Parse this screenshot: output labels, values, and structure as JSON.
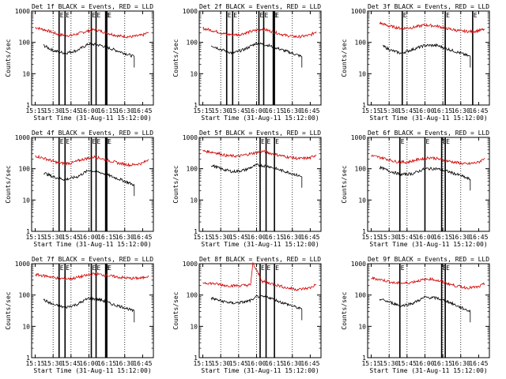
{
  "page": {
    "background": "#ffffff",
    "event_color": "#000000",
    "lld_color": "#d10000"
  },
  "chart_data": [
    {
      "type": "line",
      "title": "Det 1f BLACK = Events, RED = LLD",
      "xlabel": "Start Time (31-Aug-11 15:12:00)",
      "ylabel": "Counts/sec",
      "y_scale": "log",
      "ylim": [
        1,
        1000
      ],
      "y_ticks": [
        1,
        10,
        100,
        1000
      ],
      "y_tick_labels": [
        "1",
        "10",
        "100",
        "1000"
      ],
      "x_ticks": [
        "15:15",
        "15:30",
        "15:45",
        "16:00",
        "16:15",
        "16:30",
        "16:45"
      ],
      "dotted_gridlines": [
        "15:30",
        "15:45",
        "16:00",
        "16:15",
        "16:30"
      ],
      "attenuator_markers": [
        "15:35",
        "15:40",
        "16:02",
        "16:06",
        "16:14",
        "16:15"
      ],
      "marker_label": "E",
      "series": [
        {
          "color": "#d10000",
          "x": [
            "15:15",
            "15:25",
            "15:35",
            "15:45",
            "15:55",
            "16:05",
            "16:15",
            "16:25",
            "16:35",
            "16:45",
            "16:50"
          ],
          "values": [
            300,
            240,
            175,
            165,
            210,
            260,
            200,
            160,
            150,
            170,
            210
          ]
        },
        {
          "color": "#000000",
          "x": [
            "15:22",
            "15:30",
            "15:40",
            "15:50",
            "16:00",
            "16:10",
            "16:20",
            "16:30",
            "16:38"
          ],
          "values": [
            80,
            55,
            45,
            55,
            90,
            80,
            60,
            45,
            35
          ]
        }
      ]
    },
    {
      "type": "line",
      "title": "Det 2f BLACK = Events, RED = LLD",
      "xlabel": "Start Time (31-Aug-11 15:12:00)",
      "ylabel": "Counts/sec",
      "y_scale": "log",
      "ylim": [
        1,
        1000
      ],
      "y_ticks": [
        1,
        10,
        100,
        1000
      ],
      "y_tick_labels": [
        "1",
        "10",
        "100",
        "1000"
      ],
      "x_ticks": [
        "15:15",
        "15:30",
        "15:45",
        "16:00",
        "16:15",
        "16:30",
        "16:45"
      ],
      "dotted_gridlines": [
        "15:30",
        "15:45",
        "16:00",
        "16:15",
        "16:30"
      ],
      "attenuator_markers": [
        "15:35",
        "15:40",
        "16:02",
        "16:06",
        "16:14",
        "16:15"
      ],
      "marker_label": "E",
      "series": [
        {
          "color": "#d10000",
          "x": [
            "15:15",
            "15:25",
            "15:35",
            "15:45",
            "15:55",
            "16:05",
            "16:15",
            "16:25",
            "16:35",
            "16:45",
            "16:50"
          ],
          "values": [
            280,
            230,
            180,
            175,
            220,
            270,
            210,
            165,
            150,
            170,
            220
          ]
        },
        {
          "color": "#000000",
          "x": [
            "15:22",
            "15:30",
            "15:40",
            "15:50",
            "16:00",
            "16:10",
            "16:20",
            "16:30",
            "16:38"
          ],
          "values": [
            80,
            60,
            45,
            60,
            95,
            80,
            60,
            45,
            35
          ]
        }
      ]
    },
    {
      "type": "line",
      "title": "Det 3f BLACK = Events, RED = LLD",
      "xlabel": "Start Time (31-Aug-11 15:12:00)",
      "ylabel": "Counts/sec",
      "y_scale": "log",
      "ylim": [
        1,
        1000
      ],
      "y_ticks": [
        1,
        10,
        100,
        1000
      ],
      "y_tick_labels": [
        "1",
        "10",
        "100",
        "1000"
      ],
      "x_ticks": [
        "15:15",
        "15:30",
        "15:45",
        "16:00",
        "16:15",
        "16:30",
        "16:45"
      ],
      "dotted_gridlines": [
        "15:30",
        "15:45",
        "16:00",
        "16:15",
        "16:30"
      ],
      "attenuator_markers": [
        "15:41",
        "16:17",
        "16:40"
      ],
      "marker_label": "E",
      "series": [
        {
          "color": "#d10000",
          "x": [
            "15:22",
            "15:30",
            "15:40",
            "15:50",
            "16:00",
            "16:10",
            "16:20",
            "16:30",
            "16:40",
            "16:50"
          ],
          "values": [
            420,
            330,
            280,
            300,
            360,
            330,
            270,
            230,
            220,
            260
          ]
        },
        {
          "color": "#000000",
          "x": [
            "15:25",
            "15:32",
            "15:40",
            "15:50",
            "16:00",
            "16:10",
            "16:20",
            "16:30",
            "16:38"
          ],
          "values": [
            75,
            55,
            45,
            60,
            80,
            80,
            60,
            45,
            35
          ]
        }
      ]
    },
    {
      "type": "line",
      "title": "Det 4f BLACK = Events, RED = LLD",
      "xlabel": "Start Time (31-Aug-11 15:12:00)",
      "ylabel": "Counts/sec",
      "y_scale": "log",
      "ylim": [
        1,
        1000
      ],
      "y_ticks": [
        1,
        10,
        100,
        1000
      ],
      "y_tick_labels": [
        "1",
        "10",
        "100",
        "1000"
      ],
      "x_ticks": [
        "15:15",
        "15:30",
        "15:45",
        "16:00",
        "16:15",
        "16:30",
        "16:45"
      ],
      "dotted_gridlines": [
        "15:30",
        "15:45",
        "16:00",
        "16:15",
        "16:30"
      ],
      "attenuator_markers": [
        "15:35",
        "15:40",
        "16:02",
        "16:06",
        "16:14",
        "16:15"
      ],
      "marker_label": "E",
      "series": [
        {
          "color": "#d10000",
          "x": [
            "15:15",
            "15:25",
            "15:35",
            "15:45",
            "15:55",
            "16:05",
            "16:15",
            "16:25",
            "16:35",
            "16:45",
            "16:50"
          ],
          "values": [
            260,
            200,
            150,
            150,
            200,
            240,
            190,
            150,
            130,
            150,
            200
          ]
        },
        {
          "color": "#000000",
          "x": [
            "15:22",
            "15:30",
            "15:40",
            "15:50",
            "16:00",
            "16:10",
            "16:20",
            "16:30",
            "16:38"
          ],
          "values": [
            75,
            55,
            45,
            55,
            90,
            75,
            55,
            40,
            30
          ]
        }
      ]
    },
    {
      "type": "line",
      "title": "Det 5f BLACK = Events, RED = LLD",
      "xlabel": "Start Time (31-Aug-11 15:12:00)",
      "ylabel": "Counts/sec",
      "y_scale": "log",
      "ylim": [
        1,
        1000
      ],
      "y_ticks": [
        1,
        10,
        100,
        1000
      ],
      "y_tick_labels": [
        "1",
        "10",
        "100",
        "1000"
      ],
      "x_ticks": [
        "15:15",
        "15:30",
        "15:45",
        "16:00",
        "16:15",
        "16:30",
        "16:45"
      ],
      "dotted_gridlines": [
        "15:30",
        "15:45",
        "16:00",
        "16:15",
        "16:30"
      ],
      "attenuator_markers": [
        "16:03",
        "16:08",
        "16:15"
      ],
      "marker_label": "E",
      "series": [
        {
          "color": "#d10000",
          "x": [
            "15:15",
            "15:25",
            "15:35",
            "15:45",
            "15:55",
            "16:05",
            "16:15",
            "16:25",
            "16:35",
            "16:45",
            "16:50"
          ],
          "values": [
            370,
            330,
            260,
            250,
            300,
            360,
            290,
            240,
            210,
            220,
            280
          ]
        },
        {
          "color": "#000000",
          "x": [
            "15:22",
            "15:30",
            "15:40",
            "15:50",
            "16:00",
            "16:10",
            "16:20",
            "16:30",
            "16:38"
          ],
          "values": [
            130,
            100,
            80,
            90,
            130,
            120,
            90,
            70,
            55
          ]
        }
      ]
    },
    {
      "type": "line",
      "title": "Det 6f BLACK = Events, RED = LLD",
      "xlabel": "Start Time (31-Aug-11 15:12:00)",
      "ylabel": "Counts/sec",
      "y_scale": "log",
      "ylim": [
        1,
        1000
      ],
      "y_ticks": [
        1,
        10,
        100,
        1000
      ],
      "y_tick_labels": [
        "1",
        "10",
        "100",
        "1000"
      ],
      "x_ticks": [
        "15:15",
        "15:30",
        "15:45",
        "16:00",
        "16:15",
        "16:30",
        "16:45"
      ],
      "dotted_gridlines": [
        "15:30",
        "15:45",
        "16:00",
        "16:15",
        "16:30"
      ],
      "attenuator_markers": [
        "15:39",
        "16:00",
        "16:14",
        "16:17"
      ],
      "marker_label": "E",
      "series": [
        {
          "color": "#d10000",
          "x": [
            "15:15",
            "15:25",
            "15:35",
            "15:45",
            "15:55",
            "16:05",
            "16:15",
            "16:25",
            "16:35",
            "16:45",
            "16:50"
          ],
          "values": [
            260,
            220,
            170,
            160,
            200,
            230,
            190,
            160,
            140,
            160,
            220
          ]
        },
        {
          "color": "#000000",
          "x": [
            "15:22",
            "15:30",
            "15:40",
            "15:50",
            "16:00",
            "16:10",
            "16:20",
            "16:30",
            "16:38"
          ],
          "values": [
            110,
            85,
            65,
            70,
            100,
            100,
            80,
            60,
            45
          ]
        }
      ]
    },
    {
      "type": "line",
      "title": "Det 7f BLACK = Events, RED = LLD",
      "xlabel": "Start Time (31-Aug-11 15:12:00)",
      "ylabel": "Counts/sec",
      "y_scale": "log",
      "ylim": [
        1,
        1000
      ],
      "y_ticks": [
        1,
        10,
        100,
        1000
      ],
      "y_tick_labels": [
        "1",
        "10",
        "100",
        "1000"
      ],
      "x_ticks": [
        "15:15",
        "15:30",
        "15:45",
        "16:00",
        "16:15",
        "16:30",
        "16:45"
      ],
      "dotted_gridlines": [
        "15:30",
        "15:45",
        "16:00",
        "16:15",
        "16:30"
      ],
      "attenuator_markers": [
        "15:35",
        "15:40",
        "16:02",
        "16:06",
        "16:14",
        "16:15"
      ],
      "marker_label": "E",
      "series": [
        {
          "color": "#d10000",
          "x": [
            "15:15",
            "15:25",
            "15:35",
            "15:45",
            "15:55",
            "16:05",
            "16:15",
            "16:25",
            "16:35",
            "16:45",
            "16:50"
          ],
          "values": [
            450,
            400,
            340,
            330,
            400,
            480,
            420,
            370,
            340,
            350,
            420
          ]
        },
        {
          "color": "#000000",
          "x": [
            "15:22",
            "15:30",
            "15:40",
            "15:50",
            "16:00",
            "16:10",
            "16:20",
            "16:30",
            "16:38"
          ],
          "values": [
            70,
            50,
            40,
            50,
            80,
            70,
            50,
            40,
            30
          ]
        }
      ]
    },
    {
      "type": "line",
      "title": "Det 8f BLACK = Events, RED = LLD",
      "xlabel": "Start Time (31-Aug-11 15:12:00)",
      "ylabel": "Counts/sec",
      "y_scale": "log",
      "ylim": [
        1,
        1000
      ],
      "y_ticks": [
        1,
        10,
        100,
        1000
      ],
      "y_tick_labels": [
        "1",
        "10",
        "100",
        "1000"
      ],
      "x_ticks": [
        "15:15",
        "15:30",
        "15:45",
        "16:00",
        "16:15",
        "16:30",
        "16:45"
      ],
      "dotted_gridlines": [
        "15:30",
        "15:45",
        "16:00",
        "16:15",
        "16:30"
      ],
      "attenuator_markers": [
        "16:03",
        "16:08",
        "16:15"
      ],
      "marker_label": "E",
      "series": [
        {
          "color": "#d10000",
          "x": [
            "15:15",
            "15:25",
            "15:35",
            "15:45",
            "15:55",
            "15:57",
            "16:05",
            "16:15",
            "16:25",
            "16:35",
            "16:45",
            "16:50"
          ],
          "values": [
            250,
            230,
            200,
            200,
            210,
            1000,
            270,
            220,
            170,
            150,
            170,
            220
          ]
        },
        {
          "color": "#000000",
          "x": [
            "15:22",
            "15:30",
            "15:40",
            "15:50",
            "15:57",
            "16:00",
            "16:10",
            "16:20",
            "16:30",
            "16:38"
          ],
          "values": [
            80,
            65,
            55,
            60,
            70,
            90,
            85,
            60,
            45,
            35
          ]
        }
      ]
    },
    {
      "type": "line",
      "title": "Det 9f BLACK = Events, RED = LLD",
      "xlabel": "Start Time (31-Aug-11 15:12:00)",
      "ylabel": "Counts/sec",
      "y_scale": "log",
      "ylim": [
        1,
        1000
      ],
      "y_ticks": [
        1,
        10,
        100,
        1000
      ],
      "y_tick_labels": [
        "1",
        "10",
        "100",
        "1000"
      ],
      "x_ticks": [
        "15:15",
        "15:30",
        "15:45",
        "16:00",
        "16:15",
        "16:30",
        "16:45"
      ],
      "dotted_gridlines": [
        "15:30",
        "15:45",
        "16:00",
        "16:15",
        "16:30"
      ],
      "attenuator_markers": [
        "15:39",
        "16:14",
        "16:17"
      ],
      "marker_label": "E",
      "series": [
        {
          "color": "#d10000",
          "x": [
            "15:15",
            "15:25",
            "15:35",
            "15:45",
            "15:55",
            "16:05",
            "16:15",
            "16:25",
            "16:35",
            "16:45",
            "16:50"
          ],
          "values": [
            350,
            300,
            240,
            240,
            290,
            330,
            260,
            200,
            170,
            180,
            230
          ]
        },
        {
          "color": "#000000",
          "x": [
            "15:22",
            "15:30",
            "15:40",
            "15:50",
            "16:00",
            "16:10",
            "16:20",
            "16:30",
            "16:38"
          ],
          "values": [
            75,
            60,
            45,
            55,
            85,
            80,
            60,
            40,
            30
          ]
        }
      ]
    }
  ]
}
